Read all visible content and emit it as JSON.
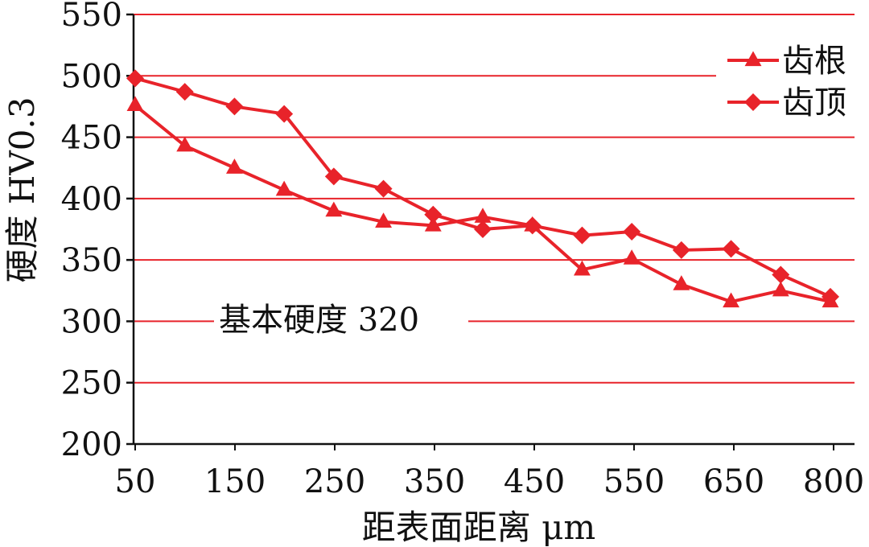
{
  "chart_data": {
    "type": "line",
    "xlabel": "距表面距离 μm",
    "ylabel": "硬度 HV0.3",
    "x_tick_labels": [
      "50",
      "150",
      "250",
      "350",
      "450",
      "550",
      "650",
      "800"
    ],
    "ylim": [
      200,
      550
    ],
    "y_ticks": [
      200,
      250,
      300,
      350,
      400,
      450,
      500,
      550
    ],
    "grid": "horizontal",
    "legend_position": "top-right",
    "annotation": "基本硬度 320",
    "series": [
      {
        "name": "齿根",
        "marker": "triangle",
        "color": "#e8232a",
        "x": [
          50,
          100,
          150,
          200,
          250,
          300,
          350,
          400,
          450,
          500,
          550,
          600,
          650,
          700,
          800
        ],
        "values": [
          476,
          443,
          425,
          407,
          390,
          381,
          378,
          385,
          378,
          342,
          351,
          330,
          316,
          325,
          316
        ]
      },
      {
        "name": "齿顶",
        "marker": "diamond",
        "color": "#e8232a",
        "x": [
          50,
          100,
          150,
          200,
          250,
          300,
          350,
          400,
          450,
          500,
          550,
          600,
          650,
          700,
          800
        ],
        "values": [
          498,
          487,
          475,
          469,
          418,
          408,
          387,
          375,
          378,
          370,
          373,
          358,
          359,
          338,
          320
        ]
      }
    ]
  }
}
